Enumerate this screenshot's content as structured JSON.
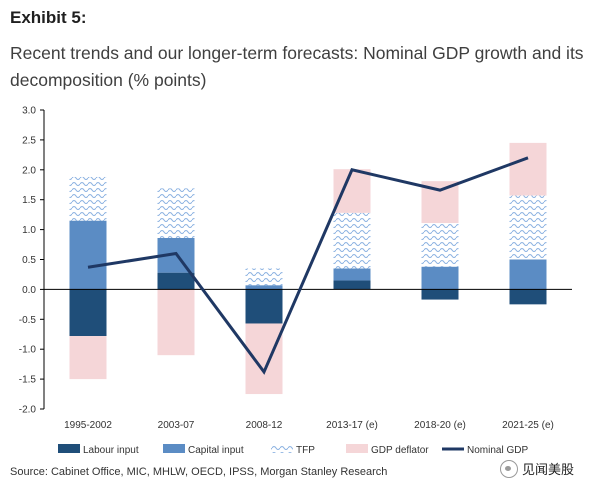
{
  "header": {
    "exhibit_label": "Exhibit 5:",
    "title": "Recent trends and our longer-term forecasts: Nominal GDP growth and its decomposition (% points)"
  },
  "chart_data": {
    "type": "bar",
    "subtype": "stacked bar with line overlay",
    "categories": [
      "1995-2002",
      "2003-07",
      "2008-12",
      "2013-17 (e)",
      "2018-20 (e)",
      "2021-25 (e)"
    ],
    "series": [
      {
        "name": "Labour input",
        "kind": "bar",
        "color": "#1f4e79",
        "values": [
          -0.78,
          0.28,
          -0.57,
          0.15,
          -0.17,
          -0.25
        ]
      },
      {
        "name": "Capital input",
        "kind": "bar",
        "color": "#5b8cc4",
        "values": [
          1.15,
          0.58,
          0.07,
          0.2,
          0.38,
          0.5
        ]
      },
      {
        "name": "TFP",
        "kind": "bar",
        "color": "#8db3e2",
        "pattern": "wave",
        "values": [
          0.73,
          0.83,
          0.28,
          0.93,
          0.73,
          1.07
        ]
      },
      {
        "name": "GDP deflator",
        "kind": "bar",
        "color": "#f5d6d8",
        "values": [
          -0.72,
          -1.1,
          -1.18,
          0.73,
          0.7,
          0.88
        ]
      },
      {
        "name": "Nominal GDP",
        "kind": "line",
        "color": "#1f3864",
        "values": [
          0.37,
          0.6,
          -1.38,
          2.0,
          1.66,
          2.2
        ]
      }
    ],
    "ylim": [
      -2.0,
      3.0
    ],
    "yticks": [
      "3.0",
      "2.5",
      "2.0",
      "1.5",
      "1.0",
      "0.5",
      "0.0",
      "-0.5",
      "-1.0",
      "-1.5",
      "-2.0"
    ],
    "legend_position": "bottom",
    "grid": false
  },
  "footer": {
    "source": "Source: Cabinet Office, MIC, MHLW, OECD, IPSS, Morgan Stanley Research",
    "watermark": "见闻美股"
  }
}
